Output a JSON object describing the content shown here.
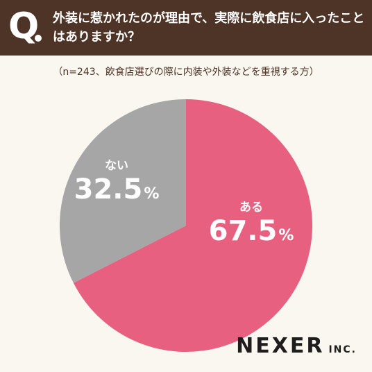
{
  "header": {
    "q_mark": "Q",
    "question": "外装に惹かれたのが理由で、実際に飲食店に入ったことはありますか？"
  },
  "note": "（n=243、飲食店選びの際に内装や外装などを重視する方）",
  "chart_data": {
    "type": "pie",
    "slices": [
      {
        "label": "ある",
        "value": 67.5,
        "unit": "%",
        "color": "#e8607f"
      },
      {
        "label": "ない",
        "value": 32.5,
        "unit": "%",
        "color": "#a6a6a6"
      }
    ]
  },
  "logo": {
    "name": "NEXER",
    "suffix": "INC."
  },
  "colors": {
    "header_bg": "#4e3426",
    "page_bg": "#faf7f0",
    "note_text": "#4e3426"
  }
}
